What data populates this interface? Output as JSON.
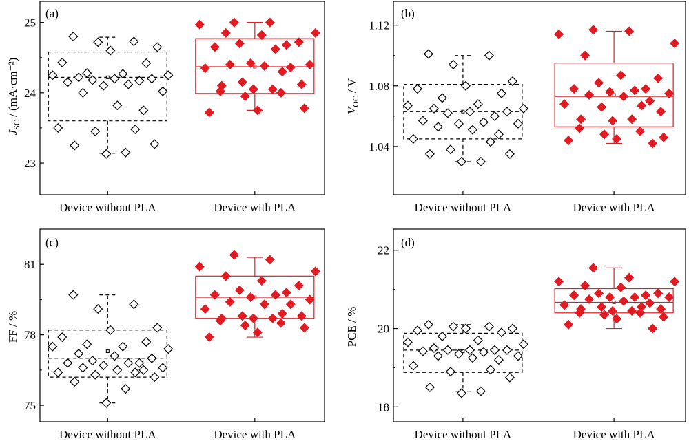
{
  "chart_data": [
    {
      "type": "box",
      "panel_label": "(a)",
      "ylabel": "J_SC / (mA·cm⁻²)",
      "ylim": [
        22.55,
        25.3
      ],
      "yticks": [
        23,
        24,
        25
      ],
      "ytick_labels": [
        "23",
        "24",
        "25"
      ],
      "categories": [
        "Device without PLA",
        "Device with PLA"
      ],
      "series": [
        {
          "name": "Device without PLA",
          "box": {
            "q1": 23.6,
            "median": 24.22,
            "mean": 24.22,
            "q3": 24.58,
            "whisker_low": 23.14,
            "whisker_high": 24.79
          },
          "points": [
            24.8,
            24.73,
            24.72,
            24.65,
            24.6,
            24.43,
            24.42,
            24.28,
            24.27,
            24.25,
            24.25,
            24.22,
            24.2,
            24.2,
            24.18,
            24.17,
            24.15,
            24.12,
            24.1,
            24.02,
            24.0,
            23.82,
            23.75,
            23.5,
            23.48,
            23.45,
            23.27,
            23.25,
            23.15,
            23.13
          ]
        },
        {
          "name": "Device with PLA",
          "box": {
            "q1": 23.99,
            "median": 24.37,
            "mean": 24.37,
            "q3": 24.77,
            "whisker_low": 23.75,
            "whisker_high": 25.0
          },
          "points": [
            25.0,
            25.0,
            24.97,
            24.85,
            24.85,
            24.82,
            24.72,
            24.7,
            24.68,
            24.65,
            24.62,
            24.42,
            24.4,
            24.4,
            24.38,
            24.36,
            24.35,
            24.3,
            24.15,
            24.12,
            24.1,
            24.05,
            24.05,
            24.02,
            24.0,
            23.95,
            23.78,
            23.75,
            23.72
          ]
        }
      ]
    },
    {
      "type": "box",
      "panel_label": "(b)",
      "ylabel": "V_OC / V",
      "ylim": [
        1.0082,
        1.1357
      ],
      "yticks": [
        1.04,
        1.08,
        1.12
      ],
      "ytick_labels": [
        "1.04",
        "1.08",
        "1.12"
      ],
      "categories": [
        "Device without PLA",
        "Device with PLA"
      ],
      "series": [
        {
          "name": "Device without PLA",
          "box": {
            "q1": 1.045,
            "median": 1.063,
            "mean": 1.063,
            "q3": 1.081,
            "whisker_low": 1.03,
            "whisker_high": 1.1
          },
          "points": [
            1.101,
            1.1,
            1.094,
            1.083,
            1.08,
            1.078,
            1.075,
            1.072,
            1.068,
            1.067,
            1.065,
            1.065,
            1.063,
            1.063,
            1.062,
            1.06,
            1.057,
            1.056,
            1.055,
            1.055,
            1.053,
            1.051,
            1.048,
            1.045,
            1.043,
            1.038,
            1.035,
            1.035,
            1.03,
            1.03
          ]
        },
        {
          "name": "Device with PLA",
          "box": {
            "q1": 1.053,
            "median": 1.073,
            "mean": 1.074,
            "q3": 1.095,
            "whisker_low": 1.042,
            "whisker_high": 1.116
          },
          "points": [
            1.117,
            1.116,
            1.114,
            1.108,
            1.1,
            1.087,
            1.085,
            1.082,
            1.078,
            1.078,
            1.077,
            1.076,
            1.075,
            1.074,
            1.073,
            1.07,
            1.068,
            1.067,
            1.066,
            1.063,
            1.058,
            1.058,
            1.057,
            1.052,
            1.05,
            1.048,
            1.046,
            1.045,
            1.044,
            1.042
          ]
        }
      ]
    },
    {
      "type": "box",
      "panel_label": "(c)",
      "ylabel": "FF / %",
      "ylim": [
        74.3,
        82.5
      ],
      "yticks": [
        75,
        78,
        81
      ],
      "ytick_labels": [
        "75",
        "78",
        "81"
      ],
      "categories": [
        "Device without PLA",
        "Device with PLA"
      ],
      "series": [
        {
          "name": "Device without PLA",
          "box": {
            "q1": 76.2,
            "median": 77.0,
            "mean": 77.3,
            "q3": 78.2,
            "whisker_low": 75.1,
            "whisker_high": 79.7
          },
          "points": [
            79.7,
            79.3,
            79.1,
            78.3,
            78.2,
            77.9,
            77.7,
            77.6,
            77.5,
            77.5,
            77.4,
            77.2,
            77.1,
            77.0,
            76.9,
            76.8,
            76.8,
            76.8,
            76.7,
            76.6,
            76.6,
            76.5,
            76.5,
            76.4,
            76.4,
            76.3,
            76.2,
            76.0,
            75.7,
            75.1
          ]
        },
        {
          "name": "Device with PLA",
          "box": {
            "q1": 78.7,
            "median": 79.6,
            "mean": 79.6,
            "q3": 80.5,
            "whisker_low": 77.9,
            "whisker_high": 81.3
          },
          "points": [
            81.4,
            81.2,
            80.9,
            80.7,
            80.5,
            80.3,
            80.1,
            79.9,
            79.8,
            79.7,
            79.7,
            79.6,
            79.5,
            79.4,
            79.3,
            79.3,
            79.1,
            78.9,
            78.8,
            78.8,
            78.7,
            78.7,
            78.7,
            78.6,
            78.5,
            78.4,
            78.3,
            78.1,
            77.9
          ]
        }
      ]
    },
    {
      "type": "box",
      "panel_label": "(d)",
      "ylabel": "PCE / %",
      "ylim": [
        17.62,
        22.54
      ],
      "yticks": [
        18,
        20,
        22
      ],
      "ytick_labels": [
        "18",
        "20",
        "22"
      ],
      "categories": [
        "Device without PLA",
        "Device with PLA"
      ],
      "series": [
        {
          "name": "Device without PLA",
          "box": {
            "q1": 18.88,
            "median": 19.45,
            "mean": 19.42,
            "q3": 19.88,
            "whisker_low": 18.4,
            "whisker_high": 20.1
          },
          "points": [
            20.1,
            20.05,
            20.05,
            20.0,
            20.0,
            19.95,
            19.9,
            19.8,
            19.7,
            19.65,
            19.6,
            19.5,
            19.45,
            19.45,
            19.45,
            19.45,
            19.42,
            19.4,
            19.35,
            19.3,
            19.3,
            19.25,
            19.2,
            19.05,
            18.95,
            18.9,
            18.75,
            18.5,
            18.4,
            18.35
          ]
        },
        {
          "name": "Device with PLA",
          "box": {
            "q1": 20.4,
            "median": 20.67,
            "mean": 20.67,
            "q3": 21.02,
            "whisker_low": 20.0,
            "whisker_high": 21.55
          },
          "points": [
            21.55,
            21.3,
            21.2,
            21.2,
            21.1,
            21.05,
            20.9,
            20.9,
            20.85,
            20.85,
            20.8,
            20.8,
            20.8,
            20.75,
            20.7,
            20.65,
            20.6,
            20.55,
            20.55,
            20.5,
            20.5,
            20.45,
            20.45,
            20.4,
            20.4,
            20.35,
            20.3,
            20.25,
            20.1,
            20.0
          ]
        }
      ]
    }
  ],
  "colors": {
    "without": "#000000",
    "with": "#e11b22",
    "frame": "#000000",
    "background": "#ffffff"
  }
}
